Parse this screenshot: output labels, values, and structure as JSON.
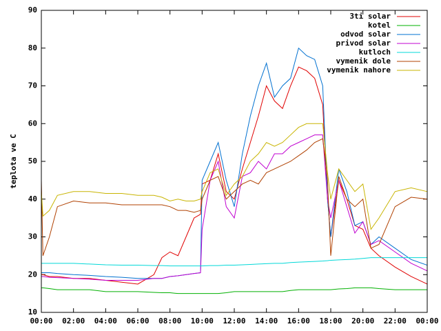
{
  "chart_data": {
    "type": "line",
    "y_label": "teplota ve C",
    "x": [
      0,
      0.1,
      0.5,
      1,
      2,
      3,
      4,
      5,
      6,
      7,
      7.5,
      8,
      8.5,
      9,
      9.5,
      9.9,
      10,
      10.5,
      11,
      11.5,
      12,
      12.5,
      13,
      13.5,
      14,
      14.5,
      15,
      15.5,
      16,
      16.5,
      17,
      17.5,
      17.8,
      18,
      18.5,
      19,
      19.5,
      20,
      20.5,
      21,
      22,
      23,
      24
    ],
    "xlim": [
      0,
      24
    ],
    "xticks": [
      {
        "value": 0,
        "label": "00:00"
      },
      {
        "value": 2,
        "label": "02:00"
      },
      {
        "value": 4,
        "label": "04:00"
      },
      {
        "value": 6,
        "label": "06:00"
      },
      {
        "value": 8,
        "label": "08:00"
      },
      {
        "value": 10,
        "label": "10:00"
      },
      {
        "value": 12,
        "label": "12:00"
      },
      {
        "value": 14,
        "label": "14:00"
      },
      {
        "value": 16,
        "label": "16:00"
      },
      {
        "value": 18,
        "label": "18:00"
      },
      {
        "value": 20,
        "label": "20:00"
      },
      {
        "value": 22,
        "label": "22:00"
      },
      {
        "value": 24,
        "label": "00:00"
      }
    ],
    "ylim": [
      10,
      90
    ],
    "yticks": [
      10,
      20,
      30,
      40,
      50,
      60,
      70,
      80,
      90
    ],
    "grid": false,
    "legend": "top-right",
    "series": [
      {
        "name": "3ti solar",
        "color": "#e00000",
        "values": [
          20,
          20,
          19.5,
          19.5,
          19,
          19,
          18.5,
          18,
          17.5,
          20,
          24.5,
          26,
          25,
          30,
          35,
          36,
          44,
          45,
          52,
          42,
          40,
          48,
          55,
          62,
          70,
          66,
          64,
          70,
          75,
          74,
          72,
          65,
          40,
          30,
          45,
          40,
          33,
          32,
          27,
          25,
          22,
          19.5,
          17.5
        ]
      },
      {
        "name": "kotel",
        "color": "#00b000",
        "values": [
          16.5,
          16.5,
          16.3,
          16,
          16,
          16,
          15.5,
          15.5,
          15.5,
          15.3,
          15.2,
          15.2,
          15,
          15,
          15,
          15,
          15,
          15,
          15,
          15.2,
          15.5,
          15.5,
          15.5,
          15.5,
          15.5,
          15.5,
          15.5,
          15.8,
          16,
          16,
          16,
          16,
          16,
          16,
          16.2,
          16.3,
          16.5,
          16.5,
          16.5,
          16.3,
          16,
          16,
          16
        ]
      },
      {
        "name": "odvod solar",
        "color": "#0070d0",
        "values": [
          20.5,
          20.5,
          20.5,
          20.3,
          20,
          19.8,
          19.5,
          19.3,
          19,
          19,
          19,
          19.5,
          19.7,
          20,
          20.3,
          20.5,
          45,
          50,
          55,
          45,
          38,
          52,
          62,
          70,
          76,
          67,
          70,
          72,
          80,
          78,
          77,
          70,
          40,
          30,
          48,
          42,
          33,
          34,
          28,
          30,
          27,
          24,
          22.5
        ]
      },
      {
        "name": "privod solar",
        "color": "#c000d0",
        "values": [
          19.5,
          19.5,
          19.3,
          19.2,
          19,
          18.8,
          18.5,
          18.5,
          18.5,
          19,
          19,
          19.5,
          19.7,
          20,
          20.3,
          20.5,
          32,
          45,
          50,
          38,
          35,
          46,
          47,
          50,
          48,
          52,
          52,
          54,
          55,
          56,
          57,
          57,
          40,
          35,
          45,
          38,
          31,
          34,
          28,
          29,
          26,
          23,
          21
        ]
      },
      {
        "name": "kutloch",
        "color": "#00d8d8",
        "values": [
          23,
          23,
          23,
          23,
          23,
          22.8,
          22.6,
          22.5,
          22.5,
          22.4,
          22.4,
          22.3,
          22.3,
          22.3,
          22.3,
          22.3,
          22.3,
          22.4,
          22.4,
          22.5,
          22.5,
          22.6,
          22.7,
          22.8,
          22.9,
          23,
          23,
          23.2,
          23.3,
          23.4,
          23.5,
          23.6,
          23.7,
          23.8,
          23.9,
          24,
          24.1,
          24.3,
          24.5,
          24.5,
          24.5,
          24.5,
          24.5
        ]
      },
      {
        "name": "vymenik dole",
        "color": "#b04000",
        "values": [
          45,
          25,
          30,
          38,
          39.5,
          39,
          39,
          38.5,
          38.5,
          38.5,
          38.5,
          38,
          37,
          37,
          36.5,
          37,
          40,
          45,
          46,
          40,
          42,
          44,
          45,
          44,
          47,
          48,
          49,
          50,
          51.5,
          53,
          55,
          56,
          45,
          25,
          46,
          40,
          38,
          40,
          27,
          28,
          38,
          40.5,
          40
        ]
      },
      {
        "name": "vymenik nahore",
        "color": "#c8b400",
        "values": [
          42,
          35.5,
          37,
          41,
          42,
          42,
          41.5,
          41.5,
          41,
          41,
          40.5,
          39.5,
          40,
          39.5,
          39.5,
          40,
          42,
          47,
          48,
          41,
          44,
          46,
          50,
          52,
          55,
          54,
          55,
          57,
          59,
          60,
          60,
          60,
          47,
          40,
          48,
          45,
          42,
          44,
          32,
          35,
          42,
          43,
          42
        ]
      }
    ]
  }
}
